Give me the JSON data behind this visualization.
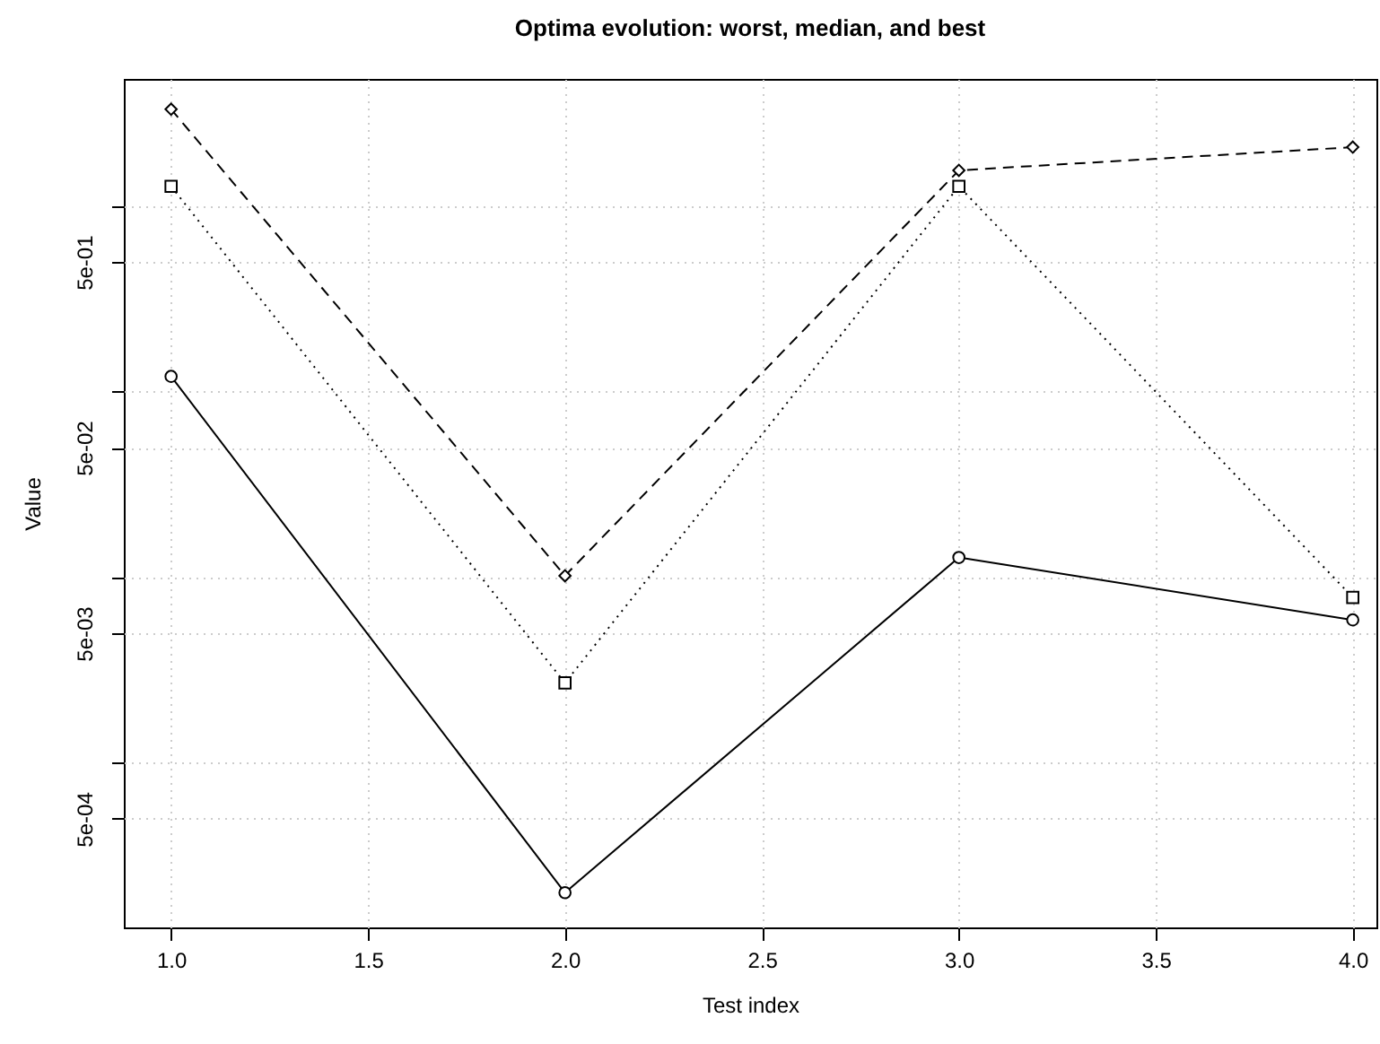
{
  "chart_data": {
    "type": "line",
    "title": "Optima evolution: worst, median, and best",
    "xlabel": "Test index",
    "ylabel": "Value",
    "x": [
      1,
      2,
      3,
      4
    ],
    "series": [
      {
        "color": "#000000",
        "line_style": "dashed",
        "marker": "diamond",
        "values": [
          3.33,
          0.0102,
          1.56,
          2.08
        ]
      },
      {
        "color": "#000000",
        "line_style": "dotted",
        "marker": "square",
        "values": [
          1.28,
          0.0027,
          1.28,
          0.0078
        ]
      },
      {
        "color": "#000000",
        "line_style": "solid",
        "marker": "circle",
        "values": [
          0.121,
          0.0002,
          0.0128,
          0.0059
        ]
      }
    ],
    "log": "y",
    "grid": true,
    "xlim": [
      0.88,
      4.06
    ],
    "xticks": [
      {
        "value": 1,
        "label": "1.0"
      },
      {
        "value": 1.5,
        "label": "1.5"
      },
      {
        "value": 2,
        "label": "2.0"
      },
      {
        "value": 2.5,
        "label": "2.5"
      },
      {
        "value": 3,
        "label": "3.0"
      },
      {
        "value": 3.5,
        "label": "3.5"
      },
      {
        "value": 4,
        "label": "4.0"
      }
    ],
    "ylim": [
      0.00013,
      4.85
    ],
    "yticks": [
      {
        "value": 0.0005,
        "label": "5e-04"
      },
      {
        "value": 0.001,
        "label": null
      },
      {
        "value": 0.005,
        "label": "5e-03"
      },
      {
        "value": 0.01,
        "label": null
      },
      {
        "value": 0.05,
        "label": "5e-02"
      },
      {
        "value": 0.1,
        "label": null
      },
      {
        "value": 0.5,
        "label": "5e-01"
      },
      {
        "value": 1,
        "label": null
      }
    ]
  }
}
